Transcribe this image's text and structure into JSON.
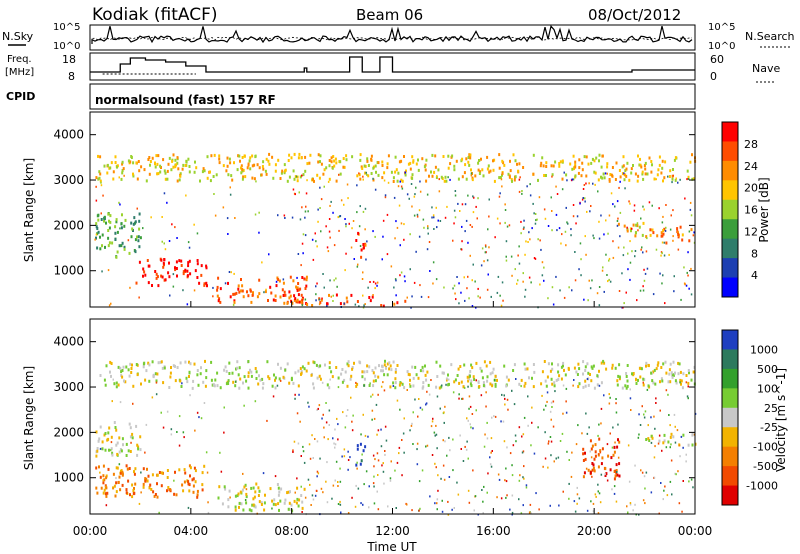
{
  "header": {
    "title": "Kodiak (fitACF)",
    "beam": "Beam 06",
    "date": "08/Oct/2012"
  },
  "noise_panel": {
    "left_label": "N.Sky",
    "right_label": "N.Search",
    "y_ticks_left": [
      "10^5",
      "10^0"
    ],
    "y_ticks_right": [
      "10^5",
      "10^0"
    ]
  },
  "freq_panel": {
    "left_label_line1": "Freq.",
    "left_label_line2": "[MHz]",
    "left_ticks": [
      "18",
      "8"
    ],
    "right_ticks": [
      "60",
      "0"
    ],
    "right_label": "Nave"
  },
  "cpid": {
    "label": "CPID",
    "text": "normalsound (fast) 157 RF"
  },
  "x_axis": {
    "label": "Time UT",
    "ticks": [
      "00:00",
      "04:00",
      "08:00",
      "12:00",
      "16:00",
      "20:00",
      "00:00"
    ]
  },
  "power_panel": {
    "ylabel": "Slant Range [km]",
    "y_ticks": [
      "4000",
      "3000",
      "2000",
      "1000"
    ],
    "colorbar_label": "Power [dB]",
    "colorbar_ticks": [
      "28",
      "24",
      "20",
      "16",
      "12",
      "8",
      "4"
    ],
    "colors": [
      "#ff0000",
      "#ff4d00",
      "#ff8c00",
      "#ffc400",
      "#9ad22e",
      "#3b9e3b",
      "#2f7d6b",
      "#1c3fb2",
      "#0000ff"
    ]
  },
  "velocity_panel": {
    "ylabel": "Slant Range [km]",
    "y_ticks": [
      "4000",
      "3000",
      "2000",
      "1000"
    ],
    "colorbar_label": "Velocity [m s^-1]",
    "colorbar_ticks": [
      "1000",
      "500",
      "100",
      "25",
      "-25",
      "-100",
      "-500",
      "-1000"
    ],
    "colors": [
      "#1f3fc0",
      "#2d7a5e",
      "#33a02c",
      "#77cc33",
      "#c8c8c8",
      "#f2b300",
      "#f47f00",
      "#f24a00",
      "#e00000"
    ]
  },
  "chart_data": {
    "type": "heatmap",
    "title": "Kodiak (fitACF)",
    "xlabel": "Time UT",
    "ylabel": "Slant Range [km]",
    "xlim": [
      0,
      24
    ],
    "ylim": [
      200,
      4500
    ],
    "power_features": [
      {
        "t0": 1.8,
        "t1": 4.6,
        "r0": 700,
        "r1": 1300,
        "power": 28
      },
      {
        "t0": 0.2,
        "t1": 2.0,
        "r0": 1300,
        "r1": 2300,
        "power": 12
      },
      {
        "t0": 5.0,
        "t1": 8.6,
        "r0": 300,
        "r1": 900,
        "power": 26
      },
      {
        "t0": 8.0,
        "t1": 12.5,
        "r0": 250,
        "r1": 500,
        "power": 24
      },
      {
        "t0": 10.5,
        "t1": 10.9,
        "r0": 1300,
        "r1": 2000,
        "power": 24
      },
      {
        "t0": 20.5,
        "t1": 22.0,
        "r0": 1800,
        "r1": 2100,
        "power": 18
      },
      {
        "t0": 22.0,
        "t1": 24.0,
        "r0": 1600,
        "r1": 2000,
        "power": 20
      },
      {
        "t0": 0.2,
        "t1": 24.0,
        "r0": 3000,
        "r1": 3600,
        "power": 16
      }
    ],
    "velocity_features": [
      {
        "t0": 0.2,
        "t1": 4.5,
        "r0": 600,
        "r1": 1300,
        "velocity": -100
      },
      {
        "t0": 0.2,
        "t1": 2.0,
        "r0": 1500,
        "r1": 2300,
        "velocity": 0
      },
      {
        "t0": 5.0,
        "t1": 8.5,
        "r0": 300,
        "r1": 900,
        "velocity": 0
      },
      {
        "t0": 10.5,
        "t1": 10.9,
        "r0": 1300,
        "r1": 2000,
        "velocity": 1000
      },
      {
        "t0": 19.5,
        "t1": 21.0,
        "r0": 1000,
        "r1": 1900,
        "velocity": -500
      },
      {
        "t0": 22.0,
        "t1": 24.0,
        "r0": 1700,
        "r1": 2000,
        "velocity": 0
      },
      {
        "t0": 0.2,
        "t1": 24.0,
        "r0": 3000,
        "r1": 3600,
        "velocity": 0
      }
    ]
  }
}
